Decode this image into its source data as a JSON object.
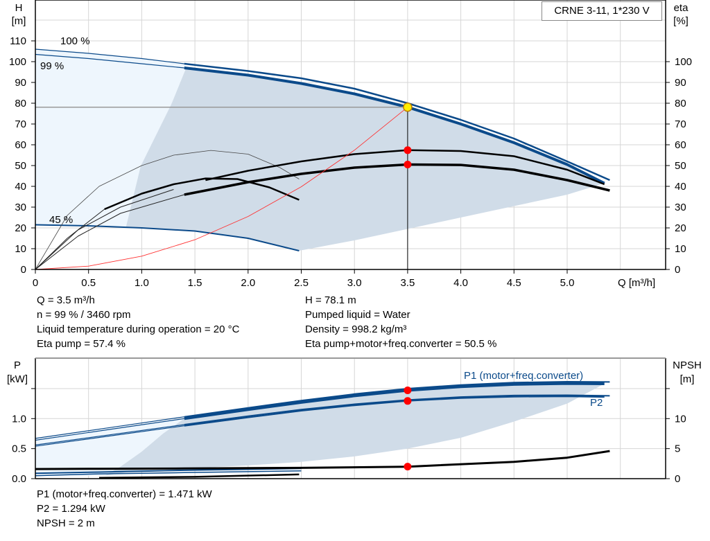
{
  "legend_box": "CRNE 3-11, 1*230 V",
  "info_top": {
    "left": [
      "Q = 3.5 m³/h",
      "n = 99 % / 3460 rpm",
      "Liquid temperature during operation = 20 °C",
      "Eta pump = 57.4 %"
    ],
    "right": [
      "H = 78.1 m",
      "Pumped liquid = Water",
      "Density = 998.2 kg/m³",
      "Eta pump+motor+freq.converter = 50.5 %"
    ]
  },
  "info_bottom": [
    "P1 (motor+freq.converter) = 1.471 kW",
    "P2 = 1.294 kW",
    "NPSH = 2 m"
  ],
  "chart_data": [
    {
      "type": "line",
      "xlabel": "Q [m³/h]",
      "ylabel_left": "H",
      "ylabel_left_unit": "[m]",
      "ylabel_right": "eta",
      "ylabel_right_unit": "[%]",
      "xlim": [
        0,
        5.95
      ],
      "ylim": [
        0,
        130
      ],
      "xticks": [
        "0",
        "0.5",
        "1.0",
        "1.5",
        "2.0",
        "2.5",
        "3.0",
        "3.5",
        "4.0",
        "4.5",
        "5.0"
      ],
      "yticks_left": [
        "0",
        "10",
        "20",
        "30",
        "40",
        "50",
        "60",
        "70",
        "80",
        "90",
        "100",
        "110"
      ],
      "yticks_right": [
        "0",
        "10",
        "20",
        "30",
        "40",
        "50",
        "60",
        "70",
        "80",
        "90",
        "100"
      ],
      "grid": true,
      "colors": {
        "head": "#0b4a8a",
        "eta": "#000000",
        "system": "#ff3030",
        "fill_dark": "#d0dce8",
        "fill_light": "#eef6fd",
        "point": "#ff0000",
        "duty_point": "#ffee00"
      },
      "annotations": [
        "100 %",
        "99 %",
        "45 %"
      ],
      "series": {
        "H_100": [
          [
            0,
            106
          ],
          [
            0.5,
            104
          ],
          [
            1,
            101.5
          ],
          [
            1.4,
            99
          ],
          [
            2,
            95.5
          ],
          [
            2.5,
            92
          ],
          [
            3,
            87
          ],
          [
            3.5,
            80
          ],
          [
            4,
            72
          ],
          [
            4.5,
            63
          ],
          [
            5,
            52
          ],
          [
            5.4,
            43
          ]
        ],
        "H_99": [
          [
            0,
            103.5
          ],
          [
            0.5,
            101.5
          ],
          [
            1,
            99
          ],
          [
            1.4,
            97
          ],
          [
            2,
            93.5
          ],
          [
            2.5,
            89.5
          ],
          [
            3,
            84.5
          ],
          [
            3.5,
            78.1
          ],
          [
            4,
            70
          ],
          [
            4.5,
            61
          ],
          [
            5,
            50.5
          ],
          [
            5.35,
            41.5
          ]
        ],
        "H_45": [
          [
            0,
            21.5
          ],
          [
            0.5,
            21
          ],
          [
            1,
            20
          ],
          [
            1.5,
            18.5
          ],
          [
            2,
            15
          ],
          [
            2.48,
            9
          ]
        ],
        "eta_pump": [
          [
            0,
            0
          ],
          [
            0.4,
            19
          ],
          [
            0.8,
            30
          ],
          [
            1.3,
            38.5
          ],
          [
            1.6,
            43
          ],
          [
            2,
            47.5
          ],
          [
            2.5,
            52
          ],
          [
            3,
            55.5
          ],
          [
            3.5,
            57.4
          ],
          [
            4,
            57
          ],
          [
            4.5,
            54.5
          ],
          [
            5,
            48
          ],
          [
            5.35,
            41
          ]
        ],
        "eta_total": [
          [
            0,
            0
          ],
          [
            0.4,
            16
          ],
          [
            0.8,
            27
          ],
          [
            1.4,
            36
          ],
          [
            2,
            42
          ],
          [
            2.5,
            46
          ],
          [
            3,
            49
          ],
          [
            3.5,
            50.5
          ],
          [
            4,
            50.3
          ],
          [
            4.5,
            48
          ],
          [
            5,
            43
          ],
          [
            5.4,
            38
          ]
        ],
        "eta_pump_45": [
          [
            0,
            0
          ],
          [
            0.3,
            26
          ],
          [
            0.6,
            40
          ],
          [
            1,
            50
          ],
          [
            1.3,
            55
          ],
          [
            1.65,
            57.3
          ],
          [
            2,
            55.5
          ],
          [
            2.3,
            49
          ],
          [
            2.48,
            43.5
          ]
        ],
        "eta_total_45": [
          [
            0,
            0
          ],
          [
            0.3,
            15
          ],
          [
            0.65,
            29
          ],
          [
            1,
            36.5
          ],
          [
            1.3,
            41
          ],
          [
            1.6,
            43.8
          ],
          [
            1.9,
            43.5
          ],
          [
            2.2,
            39.5
          ],
          [
            2.48,
            33.5
          ]
        ],
        "system": [
          [
            0,
            0
          ],
          [
            0.5,
            1.6
          ],
          [
            1,
            6.4
          ],
          [
            1.5,
            14.3
          ],
          [
            2,
            25.5
          ],
          [
            2.5,
            39.8
          ],
          [
            3,
            57.4
          ],
          [
            3.5,
            78.1
          ]
        ]
      },
      "duty_point": {
        "Q": 3.5,
        "H": 78.1,
        "eta_pump": 57.4,
        "eta_total": 50.5
      }
    },
    {
      "type": "line",
      "ylabel_left": "P",
      "ylabel_left_unit": "[kW]",
      "ylabel_right": "NPSH",
      "ylabel_right_unit": "[m]",
      "xlim": [
        0,
        5.95
      ],
      "ylim": [
        0,
        2.0
      ],
      "yticks_left": [
        "0.0",
        "0.5",
        "1.0"
      ],
      "yticks_right": [
        "0",
        "5",
        "10"
      ],
      "labels": [
        "P1 (motor+freq.converter)",
        "P2"
      ],
      "series": {
        "P1_100": [
          [
            0,
            0.67
          ],
          [
            0.7,
            0.85
          ],
          [
            1.4,
            1.03
          ],
          [
            2,
            1.18
          ],
          [
            2.5,
            1.3
          ],
          [
            3,
            1.41
          ],
          [
            3.5,
            1.5
          ],
          [
            4,
            1.56
          ],
          [
            4.5,
            1.6
          ],
          [
            5,
            1.615
          ],
          [
            5.4,
            1.61
          ]
        ],
        "P1_99": [
          [
            0,
            0.64
          ],
          [
            0.7,
            0.82
          ],
          [
            1.4,
            1.0
          ],
          [
            2,
            1.15
          ],
          [
            2.5,
            1.27
          ],
          [
            3,
            1.38
          ],
          [
            3.5,
            1.471
          ],
          [
            4,
            1.53
          ],
          [
            4.5,
            1.57
          ],
          [
            5,
            1.585
          ],
          [
            5.35,
            1.58
          ]
        ],
        "P2_100": [
          [
            0,
            0.56
          ],
          [
            0.7,
            0.73
          ],
          [
            1.4,
            0.9
          ],
          [
            2,
            1.04
          ],
          [
            2.5,
            1.15
          ],
          [
            3,
            1.24
          ],
          [
            3.5,
            1.31
          ],
          [
            4,
            1.36
          ],
          [
            4.5,
            1.385
          ],
          [
            5,
            1.39
          ],
          [
            5.4,
            1.38
          ]
        ],
        "P2_99": [
          [
            0,
            0.54
          ],
          [
            0.7,
            0.71
          ],
          [
            1.4,
            0.88
          ],
          [
            2,
            1.02
          ],
          [
            2.5,
            1.13
          ],
          [
            3,
            1.22
          ],
          [
            3.5,
            1.294
          ],
          [
            4,
            1.34
          ],
          [
            4.5,
            1.365
          ],
          [
            5,
            1.37
          ],
          [
            5.35,
            1.36
          ]
        ],
        "P1_45": [
          [
            0,
            0.09
          ],
          [
            0.6,
            0.11
          ],
          [
            1.4,
            0.14
          ],
          [
            2.5,
            0.17
          ]
        ],
        "P2_45": [
          [
            0,
            0.05
          ],
          [
            0.6,
            0.08
          ],
          [
            1.4,
            0.1
          ],
          [
            2.5,
            0.13
          ]
        ],
        "NPSH": [
          [
            0,
            1.6
          ],
          [
            0.6,
            1.65
          ],
          [
            1.4,
            1.7
          ],
          [
            2.5,
            1.8
          ],
          [
            3.5,
            2
          ],
          [
            4.5,
            2.8
          ],
          [
            5,
            3.5
          ],
          [
            5.4,
            4.6
          ]
        ],
        "NPSH_45": [
          [
            0.6,
            0.15
          ],
          [
            1.5,
            0.3
          ],
          [
            2.48,
            0.7
          ]
        ]
      },
      "duty_point": {
        "P1": 1.471,
        "P2": 1.294,
        "NPSH": 2
      }
    }
  ]
}
